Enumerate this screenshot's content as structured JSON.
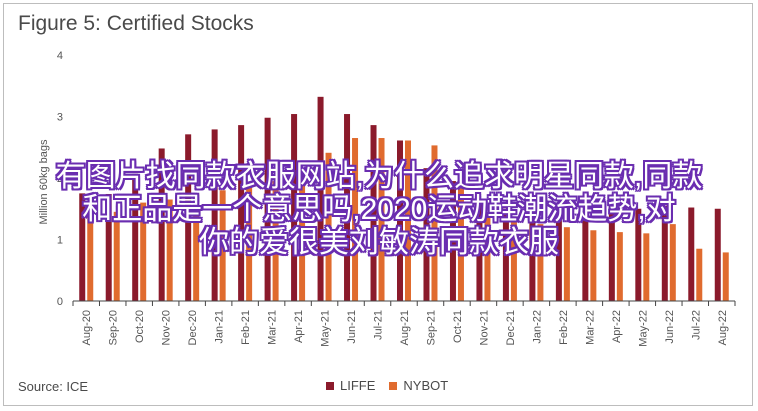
{
  "title": "Figure 5: Certified Stocks",
  "source": "Source: ICE",
  "overlay_lines": [
    "有图片找同款衣服网站,为什么追求明星同款,同款",
    "和正品是一个意思吗,2020运动鞋潮流趋势,对",
    "你的爱很美刘敏涛同款衣服"
  ],
  "colors": {
    "liffe": "#8b1a2b",
    "nybot": "#e06b2e",
    "axis": "#444444",
    "text": "#555555"
  },
  "chart_data": {
    "type": "bar",
    "ylabel": "Million 60kg bags",
    "ylim": [
      0,
      4
    ],
    "yticks": [
      0,
      1,
      2,
      3,
      4
    ],
    "categories": [
      "Aug-20",
      "Sep-20",
      "Oct-20",
      "Nov-20",
      "Dec-20",
      "Jan-21",
      "Feb-21",
      "Mar-21",
      "Apr-21",
      "May-21",
      "Jun-21",
      "Jul-21",
      "Aug-21",
      "Sep-21",
      "Oct-21",
      "Nov-21",
      "Dec-21",
      "Jan-22",
      "Feb-22",
      "Mar-22",
      "Apr-22",
      "May-22",
      "Jun-22",
      "Jul-22",
      "Aug-22"
    ],
    "series": [
      {
        "name": "LIFFE",
        "values": [
          1.75,
          1.74,
          2.07,
          2.48,
          2.71,
          2.79,
          2.86,
          2.98,
          3.04,
          3.32,
          3.04,
          2.86,
          2.61,
          2.16,
          1.95,
          1.58,
          1.5,
          1.38,
          1.43,
          1.33,
          1.58,
          1.5,
          1.55,
          1.52,
          1.5
        ]
      },
      {
        "name": "NYBOT",
        "values": [
          1.48,
          1.45,
          1.6,
          1.65,
          1.75,
          1.8,
          1.85,
          1.95,
          2.15,
          2.41,
          2.65,
          2.65,
          2.61,
          2.53,
          2.01,
          1.35,
          1.32,
          1.25,
          1.2,
          1.15,
          1.12,
          1.1,
          1.25,
          0.85,
          0.79
        ]
      }
    ]
  }
}
